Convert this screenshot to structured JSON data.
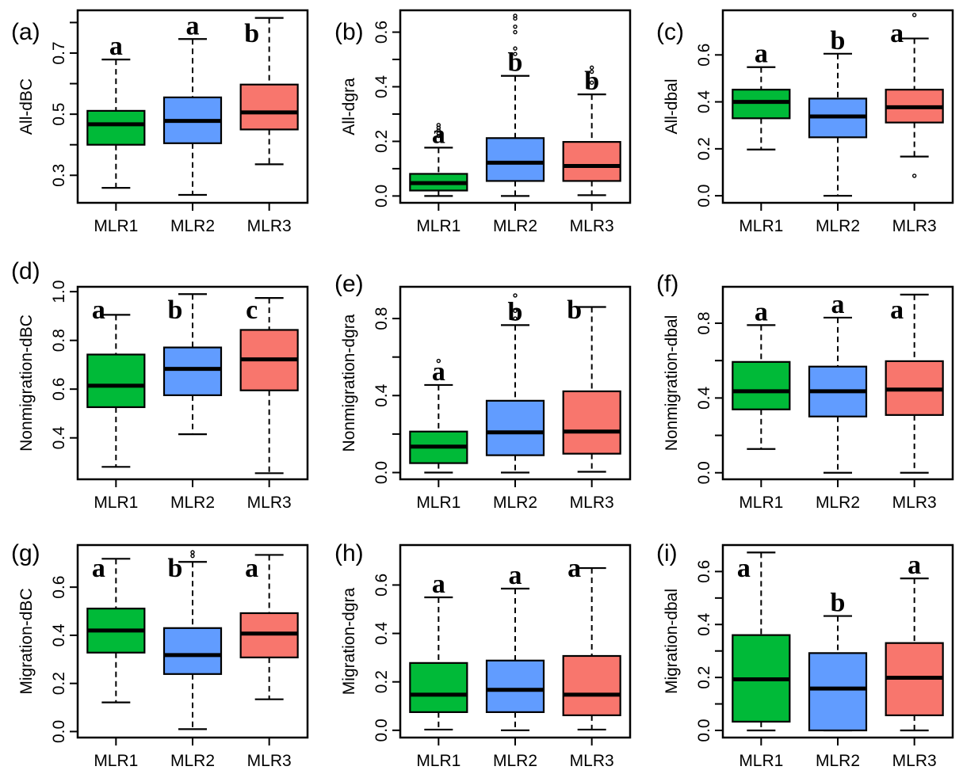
{
  "chart_data": {
    "type": "boxplot",
    "layout": "3x3 grid",
    "categories": [
      "MLR1",
      "MLR2",
      "MLR3"
    ],
    "colors": {
      "MLR1": "#00ba38",
      "MLR2": "#619cff",
      "MLR3": "#f8766d"
    },
    "panels": [
      {
        "label": "(a)",
        "ylabel": "All-dBC",
        "ylim": [
          0.21,
          0.84
        ],
        "ticks": [
          0.3,
          0.4,
          0.5,
          0.6,
          0.7,
          0.8
        ],
        "tick_labels": [
          "0.3",
          "",
          "0.5",
          "",
          "0.7",
          ""
        ],
        "groups": [
          {
            "name": "MLR1",
            "whisker_low": 0.259,
            "q1": 0.4,
            "median": 0.467,
            "q3": 0.511,
            "whisker_high": 0.679,
            "outliers": [],
            "letter": "a"
          },
          {
            "name": "MLR2",
            "whisker_low": 0.236,
            "q1": 0.405,
            "median": 0.478,
            "q3": 0.555,
            "whisker_high": 0.746,
            "outliers": [],
            "letter": "a"
          },
          {
            "name": "MLR3",
            "whisker_low": 0.336,
            "q1": 0.45,
            "median": 0.506,
            "q3": 0.597,
            "whisker_high": 0.815,
            "outliers": [],
            "letter": "b"
          }
        ]
      },
      {
        "label": "(b)",
        "ylabel": "All-dgra",
        "ylim": [
          -0.025,
          0.68
        ],
        "ticks": [
          0.0,
          0.1,
          0.2,
          0.3,
          0.4,
          0.5,
          0.6
        ],
        "tick_labels": [
          "0.0",
          "",
          "0.2",
          "",
          "0.4",
          "",
          "0.6"
        ],
        "groups": [
          {
            "name": "MLR1",
            "whisker_low": 0.0,
            "q1": 0.02,
            "median": 0.047,
            "q3": 0.081,
            "whisker_high": 0.177,
            "outliers": [
              0.22,
              0.23,
              0.24,
              0.25,
              0.26
            ],
            "letter": "a"
          },
          {
            "name": "MLR2",
            "whisker_low": 0.0,
            "q1": 0.055,
            "median": 0.122,
            "q3": 0.212,
            "whisker_high": 0.44,
            "outliers": [
              0.52,
              0.54,
              0.6,
              0.62,
              0.65,
              0.66
            ],
            "letter": "b"
          },
          {
            "name": "MLR3",
            "whisker_low": 0.003,
            "q1": 0.055,
            "median": 0.11,
            "q3": 0.198,
            "whisker_high": 0.372,
            "outliers": [
              0.415,
              0.455,
              0.47
            ],
            "letter": "b"
          }
        ]
      },
      {
        "label": "(c)",
        "ylabel": "All-dbal",
        "ylim": [
          -0.03,
          0.79
        ],
        "ticks": [
          0.0,
          0.2,
          0.4,
          0.6
        ],
        "tick_labels": [
          "0.0",
          "0.2",
          "0.4",
          "0.6"
        ],
        "groups": [
          {
            "name": "MLR1",
            "whisker_low": 0.197,
            "q1": 0.33,
            "median": 0.4,
            "q3": 0.452,
            "whisker_high": 0.548,
            "outliers": [],
            "letter": "a"
          },
          {
            "name": "MLR2",
            "whisker_low": 0.0,
            "q1": 0.249,
            "median": 0.338,
            "q3": 0.414,
            "whisker_high": 0.605,
            "outliers": [],
            "letter": "b"
          },
          {
            "name": "MLR3",
            "whisker_low": 0.167,
            "q1": 0.312,
            "median": 0.377,
            "q3": 0.452,
            "whisker_high": 0.67,
            "outliers": [
              0.085,
              0.77
            ],
            "letter": "a"
          }
        ]
      },
      {
        "label": "(d)",
        "ylabel": "Nonmigration-dBC",
        "ylim": [
          0.23,
          1.02
        ],
        "ticks": [
          0.4,
          0.6,
          0.8,
          1.0
        ],
        "tick_labels": [
          "0.4",
          "0.6",
          "0.8",
          "1.0"
        ],
        "groups": [
          {
            "name": "MLR1",
            "whisker_low": 0.281,
            "q1": 0.526,
            "median": 0.614,
            "q3": 0.742,
            "whisker_high": 0.905,
            "outliers": [],
            "letter": "a"
          },
          {
            "name": "MLR2",
            "whisker_low": 0.415,
            "q1": 0.575,
            "median": 0.683,
            "q3": 0.771,
            "whisker_high": 0.99,
            "outliers": [],
            "letter": "b"
          },
          {
            "name": "MLR3",
            "whisker_low": 0.255,
            "q1": 0.595,
            "median": 0.722,
            "q3": 0.843,
            "whisker_high": 0.974,
            "outliers": [],
            "letter": "c"
          }
        ]
      },
      {
        "label": "(e)",
        "ylabel": "Nonmigration-dgra",
        "ylim": [
          -0.035,
          0.965
        ],
        "ticks": [
          0.0,
          0.2,
          0.4,
          0.6,
          0.8
        ],
        "tick_labels": [
          "0.0",
          "",
          "0.4",
          "",
          "0.8"
        ],
        "groups": [
          {
            "name": "MLR1",
            "whisker_low": 0.0,
            "q1": 0.049,
            "median": 0.135,
            "q3": 0.213,
            "whisker_high": 0.455,
            "outliers": [
              0.58
            ],
            "letter": "a"
          },
          {
            "name": "MLR2",
            "whisker_low": 0.0,
            "q1": 0.09,
            "median": 0.209,
            "q3": 0.373,
            "whisker_high": 0.766,
            "outliers": [
              0.8,
              0.84,
              0.92
            ],
            "letter": "b"
          },
          {
            "name": "MLR3",
            "whisker_low": 0.004,
            "q1": 0.098,
            "median": 0.213,
            "q3": 0.422,
            "whisker_high": 0.86,
            "outliers": [],
            "letter": "b"
          }
        ]
      },
      {
        "label": "(f)",
        "ylabel": "Nonmigration-dbal",
        "ylim": [
          -0.035,
          0.995
        ],
        "ticks": [
          0.0,
          0.2,
          0.4,
          0.6,
          0.8
        ],
        "tick_labels": [
          "0.0",
          "",
          "0.4",
          "",
          "0.8"
        ],
        "groups": [
          {
            "name": "MLR1",
            "whisker_low": 0.127,
            "q1": 0.339,
            "median": 0.436,
            "q3": 0.593,
            "whisker_high": 0.79,
            "outliers": [],
            "letter": "a"
          },
          {
            "name": "MLR2",
            "whisker_low": 0.0,
            "q1": 0.301,
            "median": 0.436,
            "q3": 0.568,
            "whisker_high": 0.83,
            "outliers": [],
            "letter": "a"
          },
          {
            "name": "MLR3",
            "whisker_low": 0.0,
            "q1": 0.309,
            "median": 0.445,
            "q3": 0.597,
            "whisker_high": 0.953,
            "outliers": [],
            "letter": "a"
          }
        ]
      },
      {
        "label": "(g)",
        "ylabel": "Migration-dBC",
        "ylim": [
          -0.025,
          0.775
        ],
        "ticks": [
          0.0,
          0.2,
          0.4,
          0.6
        ],
        "tick_labels": [
          "0.0",
          "0.2",
          "0.4",
          "0.6"
        ],
        "groups": [
          {
            "name": "MLR1",
            "whisker_low": 0.121,
            "q1": 0.328,
            "median": 0.42,
            "q3": 0.511,
            "whisker_high": 0.718,
            "outliers": [],
            "letter": "a"
          },
          {
            "name": "MLR2",
            "whisker_low": 0.01,
            "q1": 0.239,
            "median": 0.318,
            "q3": 0.43,
            "whisker_high": 0.705,
            "outliers": [
              0.73,
              0.745
            ],
            "letter": "b"
          },
          {
            "name": "MLR3",
            "whisker_low": 0.134,
            "q1": 0.308,
            "median": 0.407,
            "q3": 0.492,
            "whisker_high": 0.734,
            "outliers": [],
            "letter": "a"
          }
        ]
      },
      {
        "label": "(h)",
        "ylabel": "Migration-dgra",
        "ylim": [
          -0.03,
          0.765
        ],
        "ticks": [
          0.0,
          0.2,
          0.4,
          0.6
        ],
        "tick_labels": [
          "0.0",
          "0.2",
          "0.4",
          "0.6"
        ],
        "groups": [
          {
            "name": "MLR1",
            "whisker_low": 0.003,
            "q1": 0.075,
            "median": 0.147,
            "q3": 0.278,
            "whisker_high": 0.549,
            "outliers": [],
            "letter": "a"
          },
          {
            "name": "MLR2",
            "whisker_low": 0.0,
            "q1": 0.075,
            "median": 0.167,
            "q3": 0.288,
            "whisker_high": 0.585,
            "outliers": [],
            "letter": "a"
          },
          {
            "name": "MLR3",
            "whisker_low": 0.003,
            "q1": 0.062,
            "median": 0.147,
            "q3": 0.307,
            "whisker_high": 0.67,
            "outliers": [],
            "letter": "a"
          }
        ]
      },
      {
        "label": "(i)",
        "ylabel": "Migration-dbal",
        "ylim": [
          -0.027,
          0.7
        ],
        "ticks": [
          0.0,
          0.1,
          0.2,
          0.3,
          0.4,
          0.5,
          0.6
        ],
        "tick_labels": [
          "0.0",
          "",
          "0.2",
          "",
          "0.4",
          "",
          "0.6"
        ],
        "groups": [
          {
            "name": "MLR1",
            "whisker_low": 0.0,
            "q1": 0.033,
            "median": 0.193,
            "q3": 0.36,
            "whisker_high": 0.672,
            "outliers": [],
            "letter": "a"
          },
          {
            "name": "MLR2",
            "whisker_low": 0.0,
            "q1": 0.0,
            "median": 0.158,
            "q3": 0.292,
            "whisker_high": 0.432,
            "outliers": [],
            "letter": "b"
          },
          {
            "name": "MLR3",
            "whisker_low": 0.0,
            "q1": 0.057,
            "median": 0.199,
            "q3": 0.33,
            "whisker_high": 0.574,
            "outliers": [],
            "letter": "a"
          }
        ]
      }
    ]
  }
}
